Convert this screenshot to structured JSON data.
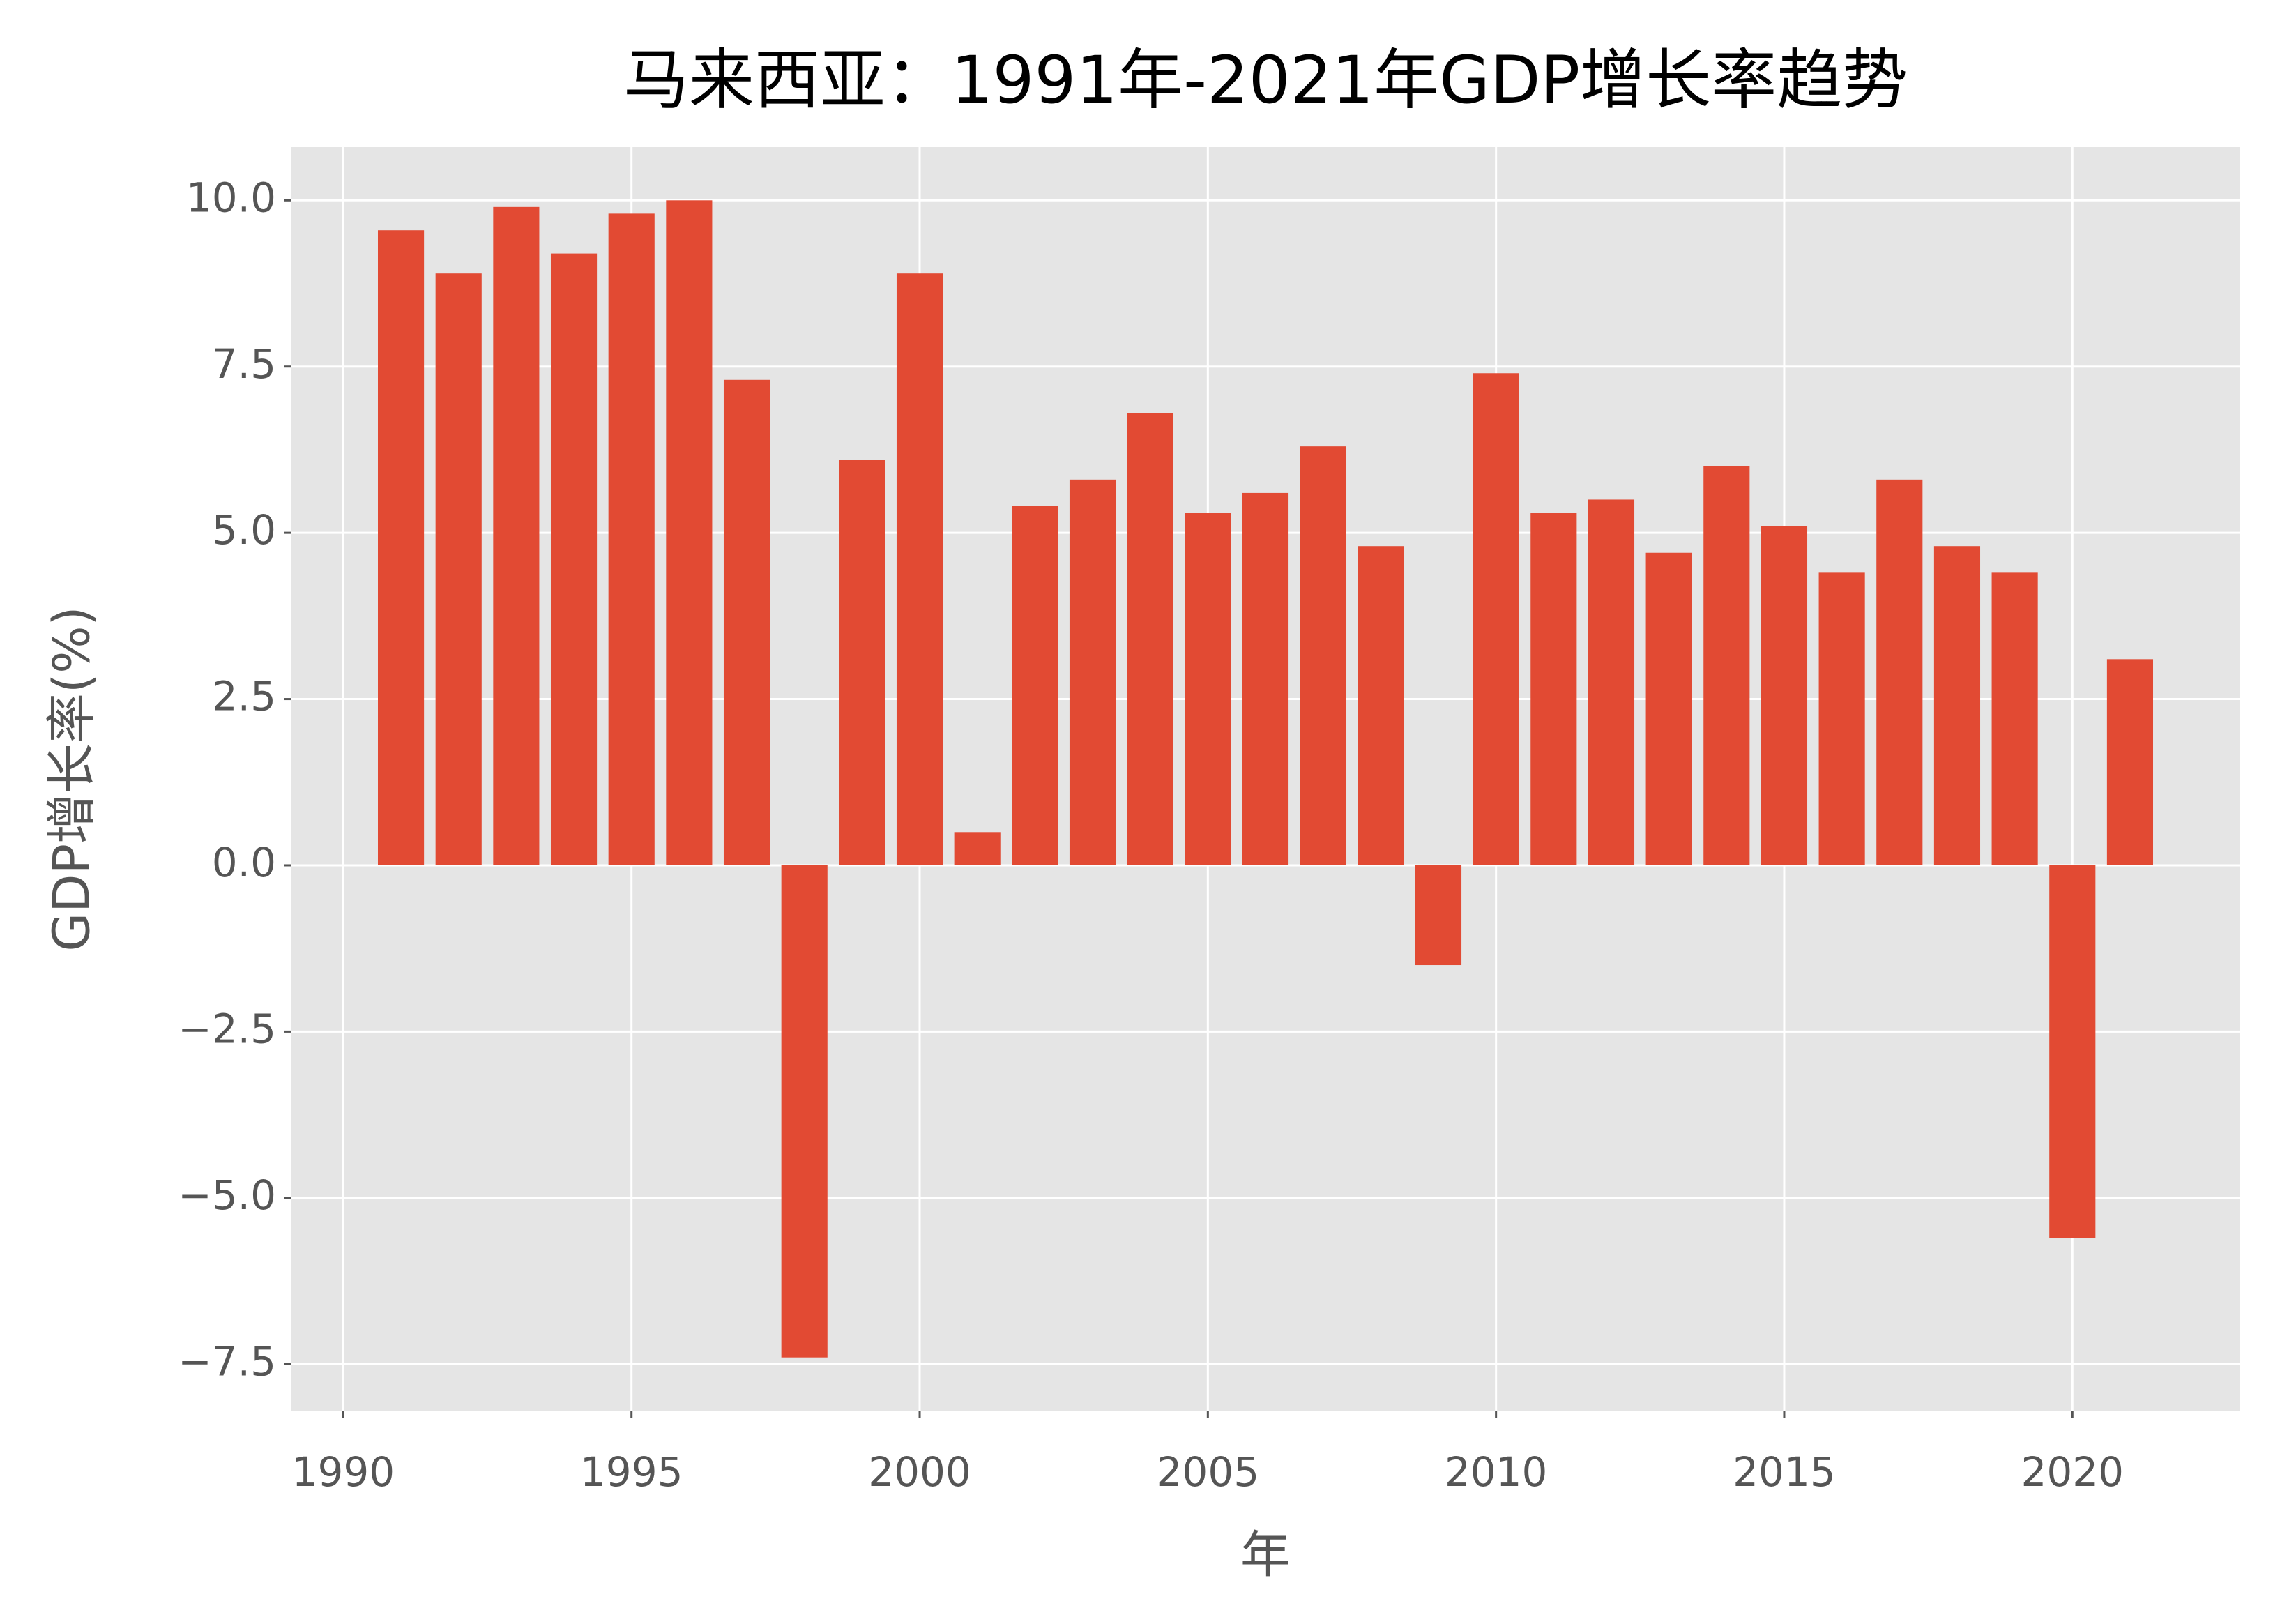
{
  "chart_data": {
    "type": "bar",
    "title": "马来西亚：1991年-2021年GDP增长率趋势",
    "x_label": "年",
    "y_label": "GDP增长率(%)",
    "x": [
      1991,
      1992,
      1993,
      1994,
      1995,
      1996,
      1997,
      1998,
      1999,
      2000,
      2001,
      2002,
      2003,
      2004,
      2005,
      2006,
      2007,
      2008,
      2009,
      2010,
      2011,
      2012,
      2013,
      2014,
      2015,
      2016,
      2017,
      2018,
      2019,
      2020,
      2021
    ],
    "values": [
      9.55,
      8.9,
      9.9,
      9.2,
      9.8,
      10.0,
      7.3,
      -7.4,
      6.1,
      8.9,
      0.5,
      5.4,
      5.8,
      6.8,
      5.3,
      5.6,
      6.3,
      4.8,
      -1.5,
      7.4,
      5.3,
      5.5,
      4.7,
      6.0,
      5.1,
      4.4,
      5.8,
      4.8,
      4.4,
      -5.6,
      3.1
    ],
    "color": "#E24A33",
    "xlim": [
      1989.1,
      2022.9
    ],
    "xticks": [
      1990,
      1995,
      2000,
      2005,
      2010,
      2015,
      2020
    ],
    "ylim": [
      -8.2,
      10.8
    ],
    "yticks": [
      {
        "value": -7.5,
        "label": "−7.5"
      },
      {
        "value": -5,
        "label": "−5.0"
      },
      {
        "value": -2.5,
        "label": "−2.5"
      },
      {
        "value": 0,
        "label": "0.0"
      },
      {
        "value": 2.5,
        "label": "2.5"
      },
      {
        "value": 5,
        "label": "5.0"
      },
      {
        "value": 7.5,
        "label": "7.5"
      },
      {
        "value": 10,
        "label": "10.0"
      }
    ],
    "grid": true
  }
}
